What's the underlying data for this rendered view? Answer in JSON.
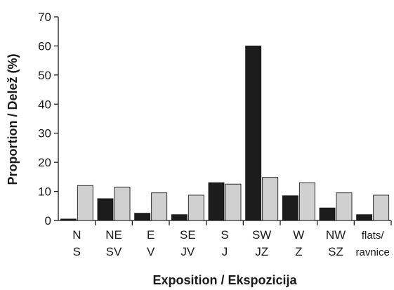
{
  "chart_data": {
    "type": "bar",
    "xlabel": "Exposition / Ekspozicija",
    "ylabel": "Proportion / Delež (%)",
    "ylim": [
      0,
      70
    ],
    "yticks": [
      0,
      10,
      20,
      30,
      40,
      50,
      60,
      70
    ],
    "categories": [
      {
        "line1": "N",
        "line2": "S"
      },
      {
        "line1": "NE",
        "line2": "SV"
      },
      {
        "line1": "E",
        "line2": "V"
      },
      {
        "line1": "SE",
        "line2": "JV"
      },
      {
        "line1": "S",
        "line2": "J"
      },
      {
        "line1": "SW",
        "line2": "JZ"
      },
      {
        "line1": "W",
        "line2": "Z"
      },
      {
        "line1": "NW",
        "line2": "SZ"
      },
      {
        "line1": "flats/",
        "line2": "ravnice"
      }
    ],
    "series": [
      {
        "color": "#1c1c1c",
        "values": [
          0.5,
          7.5,
          2.5,
          2.0,
          13.0,
          60.0,
          8.5,
          4.3,
          2.0
        ]
      },
      {
        "color": "#d0d0d0",
        "values": [
          12.0,
          11.5,
          9.5,
          8.7,
          12.5,
          14.8,
          13.0,
          9.5,
          8.7
        ]
      }
    ],
    "grid": false,
    "legend": "none"
  }
}
